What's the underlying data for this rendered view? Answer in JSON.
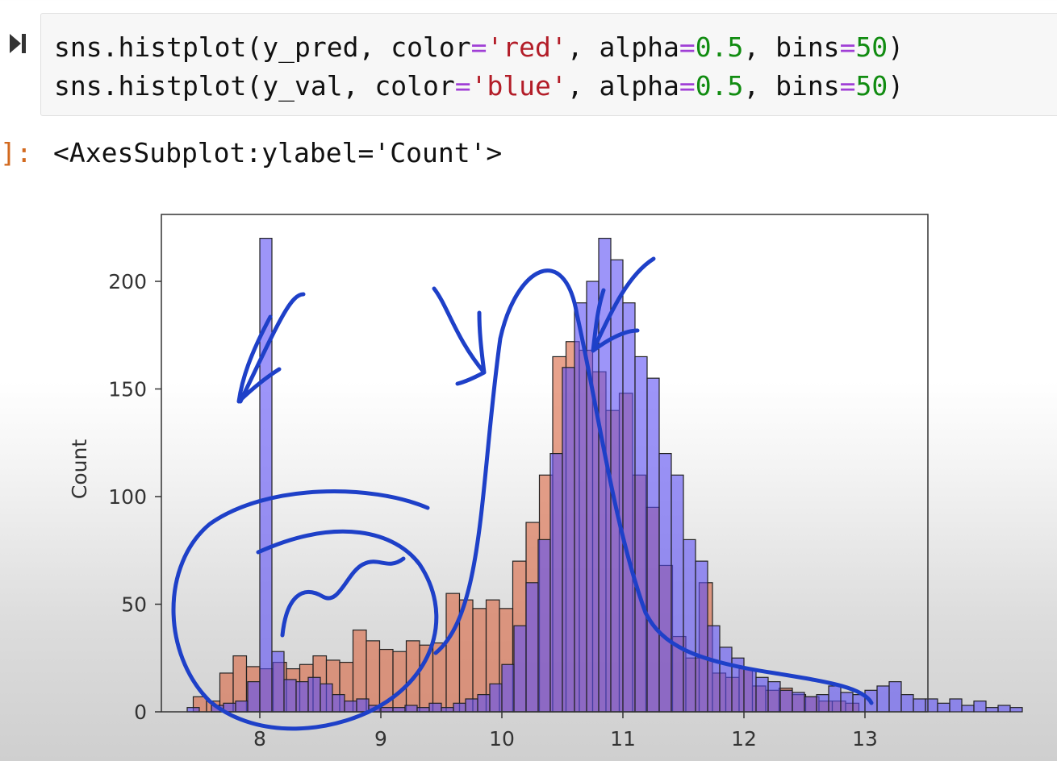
{
  "code_cell": {
    "line1": {
      "prefix": "sns.histplot(y_pred, color",
      "eq1": "=",
      "str": "'red'",
      "mid": ", alpha",
      "eq2": "=",
      "num1": "0.5",
      "mid2": ", bins",
      "eq3": "=",
      "num2": "50",
      "end": ")"
    },
    "line2": {
      "prefix": "sns.histplot(y_val, color",
      "eq1": "=",
      "str": "'blue'",
      "mid": ", alpha",
      "eq2": "=",
      "num1": "0.5",
      "mid2": ", bins",
      "eq3": "=",
      "num2": "50",
      "end": ")"
    }
  },
  "output": {
    "prompt": "]:",
    "text": "<AxesSubplot:ylabel='Count'>"
  },
  "colors": {
    "y_pred": "#d9643f",
    "y_val": "#5b4ff5",
    "overlap": "#7a2a9a",
    "ink": "#1e40c8"
  },
  "chart_data": {
    "type": "bar",
    "ylabel": "Count",
    "xlim": [
      7.2,
      13.5
    ],
    "ylim": [
      0,
      225
    ],
    "xticks": [
      "8",
      "9",
      "10",
      "11",
      "12",
      "13"
    ],
    "yticks": [
      "0",
      "50",
      "100",
      "150",
      "200"
    ],
    "series": [
      {
        "name": "y_pred",
        "color": "red",
        "bin_start": 7.45,
        "bin_width": 0.11,
        "values": [
          7,
          5,
          18,
          26,
          21,
          20,
          23,
          20,
          22,
          26,
          24,
          23,
          38,
          33,
          29,
          28,
          33,
          31,
          32,
          55,
          52,
          48,
          52,
          48,
          70,
          88,
          110,
          165,
          172,
          168,
          158,
          140,
          148,
          110,
          95,
          68,
          35,
          25,
          60,
          18,
          16,
          20,
          12,
          10,
          11,
          8,
          7,
          5,
          5,
          4
        ]
      },
      {
        "name": "y_val",
        "color": "blue",
        "bin_start": 7.4,
        "bin_width": 0.1,
        "values": [
          2,
          0,
          3,
          4,
          5,
          14,
          220,
          28,
          15,
          14,
          16,
          13,
          8,
          5,
          6,
          3,
          2,
          2,
          3,
          2,
          4,
          2,
          4,
          6,
          8,
          13,
          22,
          40,
          60,
          80,
          120,
          160,
          190,
          200,
          220,
          210,
          190,
          165,
          155,
          120,
          110,
          80,
          70,
          40,
          30,
          25,
          20,
          16,
          14,
          10,
          9,
          7,
          8,
          12,
          9,
          8,
          10,
          12,
          14,
          8,
          6,
          6,
          4,
          6,
          3,
          5,
          2,
          3,
          2
        ]
      }
    ]
  }
}
